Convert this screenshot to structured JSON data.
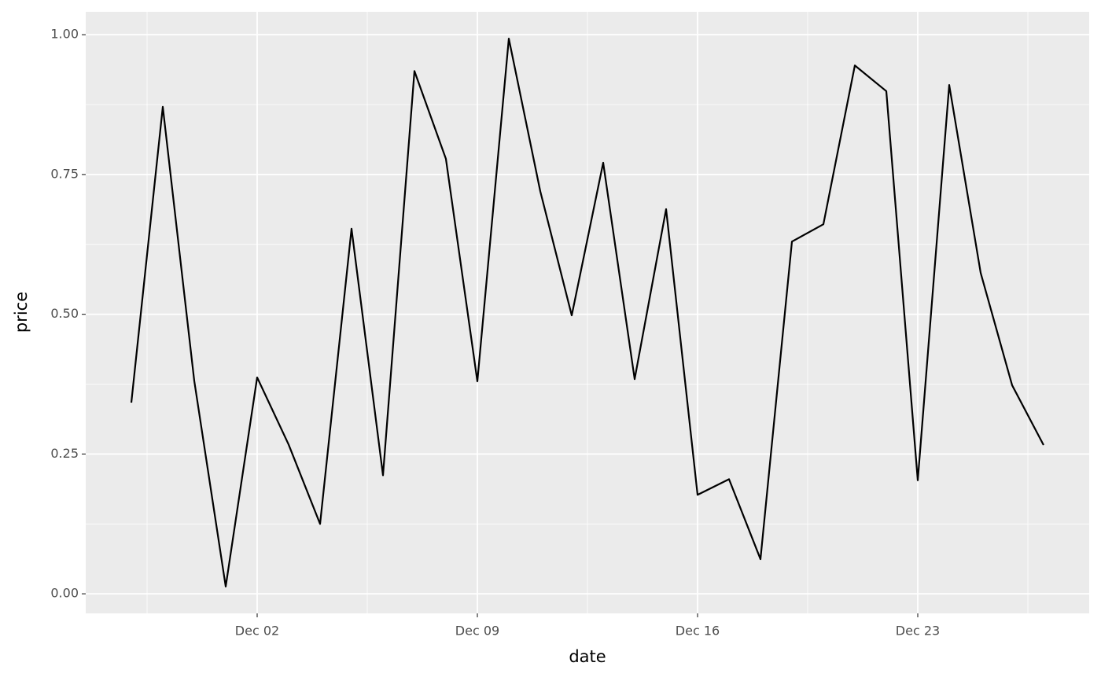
{
  "chart_data": {
    "type": "line",
    "x_label": "date",
    "y_label": "price",
    "x": [
      "Nov 28",
      "Nov 29",
      "Nov 30",
      "Dec 01",
      "Dec 02",
      "Dec 03",
      "Dec 04",
      "Dec 05",
      "Dec 06",
      "Dec 07",
      "Dec 08",
      "Dec 09",
      "Dec 10",
      "Dec 11",
      "Dec 12",
      "Dec 13",
      "Dec 14",
      "Dec 15",
      "Dec 16",
      "Dec 17",
      "Dec 18",
      "Dec 19",
      "Dec 20",
      "Dec 21",
      "Dec 22",
      "Dec 23",
      "Dec 24",
      "Dec 25",
      "Dec 26",
      "Dec 27"
    ],
    "values": [
      0.342,
      0.871,
      0.381,
      0.013,
      0.387,
      0.267,
      0.125,
      0.653,
      0.212,
      0.935,
      0.778,
      0.38,
      0.993,
      0.72,
      0.498,
      0.771,
      0.384,
      0.688,
      0.177,
      0.205,
      0.062,
      0.63,
      0.661,
      0.945,
      0.899,
      0.203,
      0.91,
      0.574,
      0.373,
      0.266
    ],
    "color": "#000000",
    "xticks": [
      "Dec 02",
      "Dec 09",
      "Dec 16",
      "Dec 23"
    ],
    "ylim": [
      -0.035,
      1.041
    ],
    "yticks": [
      {
        "value": 0,
        "label": "0.00"
      },
      {
        "value": 0.25,
        "label": "0.25"
      },
      {
        "value": 0.5,
        "label": "0.50"
      },
      {
        "value": 0.75,
        "label": "0.75"
      },
      {
        "value": 1,
        "label": "1.00"
      }
    ],
    "grid": true
  }
}
